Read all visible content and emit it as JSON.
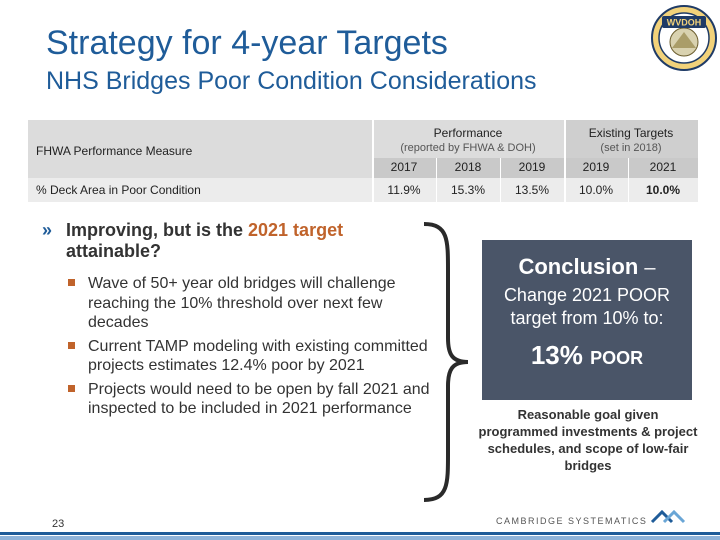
{
  "header": {
    "title": "Strategy for 4-year Targets",
    "subtitle": "NHS Bridges Poor Condition Considerations",
    "logo_text": "WVDOH"
  },
  "table": {
    "measure_header": "FHWA Performance Measure",
    "performance_header": "Performance",
    "performance_sub": "(reported by FHWA & DOH)",
    "targets_header": "Existing Targets",
    "targets_sub": "(set in 2018)",
    "years": [
      "2017",
      "2018",
      "2019",
      "2019",
      "2021"
    ],
    "row": {
      "label": "% Deck Area in Poor Condition",
      "values": [
        "11.9%",
        "15.3%",
        "13.5%",
        "10.0%",
        "10.0%"
      ]
    }
  },
  "bullets": {
    "main_prefix": "Improving, but is the ",
    "main_highlight": "2021 target",
    "main_suffix": "attainable?",
    "items": [
      "Wave of 50+ year old bridges will challenge reaching the 10% threshold over next few decades",
      "Current TAMP modeling with existing committed projects estimates 12.4% poor by 2021",
      "Projects would need to be open by fall 2021 and inspected to be included in 2021 performance"
    ]
  },
  "conclusion": {
    "heading": "Conclusion",
    "dash": "–",
    "text": "Change 2021 POOR target from 10% to:",
    "value": "13%",
    "value_label": "POOR"
  },
  "note": "Reasonable goal given programmed investments & project schedules, and scope of low-fair bridges",
  "footer": {
    "page_number": "23",
    "brand": "CAMBRIDGE SYSTEMATICS"
  },
  "colors": {
    "title_blue": "#1f5c99",
    "accent_orange": "#c0632b",
    "red": "#c0392b",
    "conclusion_bg": "#4a5568"
  }
}
